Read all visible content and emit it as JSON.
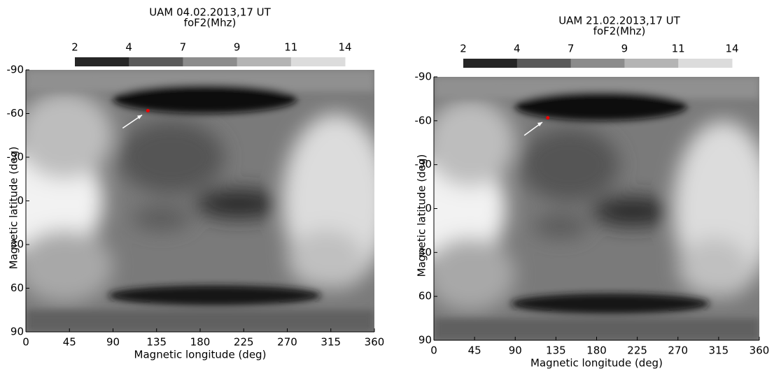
{
  "chart_data": [
    {
      "type": "heatmap",
      "title": "UAM 04.02.2013,17 UT",
      "colorbar": {
        "label": "foF2(Mhz)",
        "ticks": [
          2,
          4,
          7,
          9,
          11,
          14
        ],
        "colors": [
          "#262626",
          "#5a5a5a",
          "#8c8c8c",
          "#b4b4b4",
          "#dcdcdc"
        ]
      },
      "xlabel": "Magnetic longitude (deg)",
      "ylabel": "Magnetic latitude (deg)",
      "xlim": [
        0,
        360
      ],
      "xticks": [
        0,
        45,
        90,
        135,
        180,
        225,
        270,
        315,
        360
      ],
      "ylim": [
        -90,
        90
      ],
      "yticks": [
        -90,
        -60,
        -30,
        0,
        30,
        60,
        90
      ],
      "y_inverted": true
    },
    {
      "type": "heatmap",
      "title": "UAM 21.02.2013,17 UT",
      "colorbar": {
        "label": "foF2(Mhz)",
        "ticks": [
          2,
          4,
          7,
          9,
          11,
          14
        ],
        "colors": [
          "#262626",
          "#5a5a5a",
          "#8c8c8c",
          "#b4b4b4",
          "#dcdcdc"
        ]
      },
      "xlabel": "Magnetic longitude (deg)",
      "ylabel": "Magnetic latitude (deg)",
      "xlim": [
        0,
        360
      ],
      "xticks": [
        0,
        45,
        90,
        135,
        180,
        225,
        270,
        315,
        360
      ],
      "ylim": [
        -90,
        90
      ],
      "yticks": [
        -90,
        -60,
        -30,
        0,
        30,
        60,
        90
      ],
      "y_inverted": true
    }
  ]
}
